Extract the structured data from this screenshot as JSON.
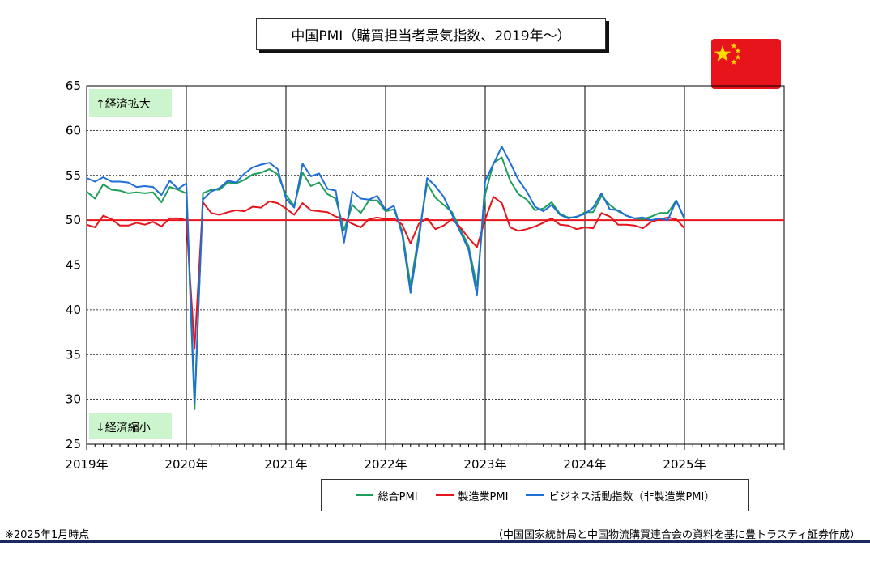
{
  "title": "中国PMI（購買担当者景気指数、2019年～）",
  "annotations": {
    "top": "↑経済拡大",
    "bottom": "↓経済縮小"
  },
  "notes": {
    "left": "※2025年1月時点",
    "right": "（中国国家統計局と中国物流購買連合会の資料を基に豊トラスティ証券作成）"
  },
  "colors": {
    "green": "#1e9e5a",
    "red": "#e8141c",
    "blue": "#1f6fd6",
    "flag_red": "#e8141c",
    "flag_star": "#ffde00",
    "annotation_bg": "#cdf5cd"
  },
  "chart_data": {
    "type": "line",
    "ylim": [
      25,
      65
    ],
    "yticks": [
      25,
      30,
      35,
      40,
      45,
      50,
      55,
      60,
      65
    ],
    "xticks": [
      {
        "label": "2019年",
        "t": 2019
      },
      {
        "label": "2020年",
        "t": 2020
      },
      {
        "label": "2021年",
        "t": 2021
      },
      {
        "label": "2022年",
        "t": 2022
      },
      {
        "label": "2023年",
        "t": 2023
      },
      {
        "label": "2024年",
        "t": 2024
      },
      {
        "label": "2025年",
        "t": 2025
      }
    ],
    "x_range": [
      2019,
      2026
    ],
    "grid": true,
    "reference_line": 50,
    "start": "2019-01",
    "series": [
      {
        "name": "総合PMI",
        "color": "#1e9e5a",
        "values": [
          53.2,
          52.4,
          54.0,
          53.4,
          53.3,
          53.0,
          53.1,
          53.0,
          53.1,
          52.0,
          53.7,
          53.4,
          53.0,
          28.9,
          53.0,
          53.4,
          53.4,
          54.2,
          54.1,
          54.5,
          55.1,
          55.3,
          55.7,
          55.1,
          52.8,
          51.6,
          55.3,
          53.8,
          54.2,
          52.9,
          52.4,
          48.9,
          51.7,
          50.8,
          52.2,
          52.2,
          51.0,
          51.2,
          48.8,
          42.7,
          48.4,
          54.1,
          52.5,
          51.7,
          50.9,
          49.0,
          47.1,
          42.6,
          52.9,
          56.4,
          57.0,
          54.4,
          52.9,
          52.3,
          51.1,
          51.3,
          52.0,
          50.7,
          50.3,
          50.3,
          50.9,
          50.9,
          52.7,
          51.7,
          51.0,
          50.5,
          50.2,
          50.1,
          50.4,
          50.8,
          50.8,
          52.2,
          50.1
        ]
      },
      {
        "name": "製造業PMI",
        "color": "#e8141c",
        "values": [
          49.5,
          49.2,
          50.5,
          50.1,
          49.4,
          49.4,
          49.7,
          49.5,
          49.8,
          49.3,
          50.2,
          50.2,
          50.0,
          35.7,
          52.0,
          50.8,
          50.6,
          50.9,
          51.1,
          51.0,
          51.5,
          51.4,
          52.1,
          51.9,
          51.3,
          50.6,
          51.9,
          51.1,
          51.0,
          50.9,
          50.4,
          50.1,
          49.6,
          49.2,
          50.1,
          50.3,
          50.1,
          50.2,
          49.5,
          47.4,
          49.6,
          50.2,
          49.0,
          49.4,
          50.1,
          49.2,
          48.0,
          47.0,
          50.1,
          52.6,
          51.9,
          49.2,
          48.8,
          49.0,
          49.3,
          49.7,
          50.2,
          49.5,
          49.4,
          49.0,
          49.2,
          49.1,
          50.8,
          50.4,
          49.5,
          49.5,
          49.4,
          49.1,
          49.8,
          50.1,
          50.3,
          50.1,
          49.1
        ]
      },
      {
        "name": "ビジネス活動指数（非製造業PMI）",
        "color": "#1f6fd6",
        "values": [
          54.7,
          54.3,
          54.8,
          54.3,
          54.3,
          54.2,
          53.7,
          53.8,
          53.7,
          52.8,
          54.4,
          53.5,
          54.1,
          29.6,
          52.3,
          53.2,
          53.6,
          54.4,
          54.2,
          55.2,
          55.9,
          56.2,
          56.4,
          55.7,
          52.4,
          51.4,
          56.3,
          54.9,
          55.2,
          53.5,
          53.3,
          47.5,
          53.2,
          52.4,
          52.3,
          52.7,
          51.1,
          51.6,
          48.4,
          41.9,
          47.8,
          54.7,
          53.8,
          52.6,
          50.6,
          48.7,
          46.7,
          41.6,
          54.4,
          56.3,
          58.2,
          56.4,
          54.5,
          53.2,
          51.5,
          51.0,
          51.7,
          50.6,
          50.2,
          50.4,
          50.7,
          51.4,
          53.0,
          51.2,
          51.1,
          50.5,
          50.2,
          50.3,
          50.0,
          50.2,
          50.0,
          52.2,
          50.2
        ]
      }
    ]
  }
}
